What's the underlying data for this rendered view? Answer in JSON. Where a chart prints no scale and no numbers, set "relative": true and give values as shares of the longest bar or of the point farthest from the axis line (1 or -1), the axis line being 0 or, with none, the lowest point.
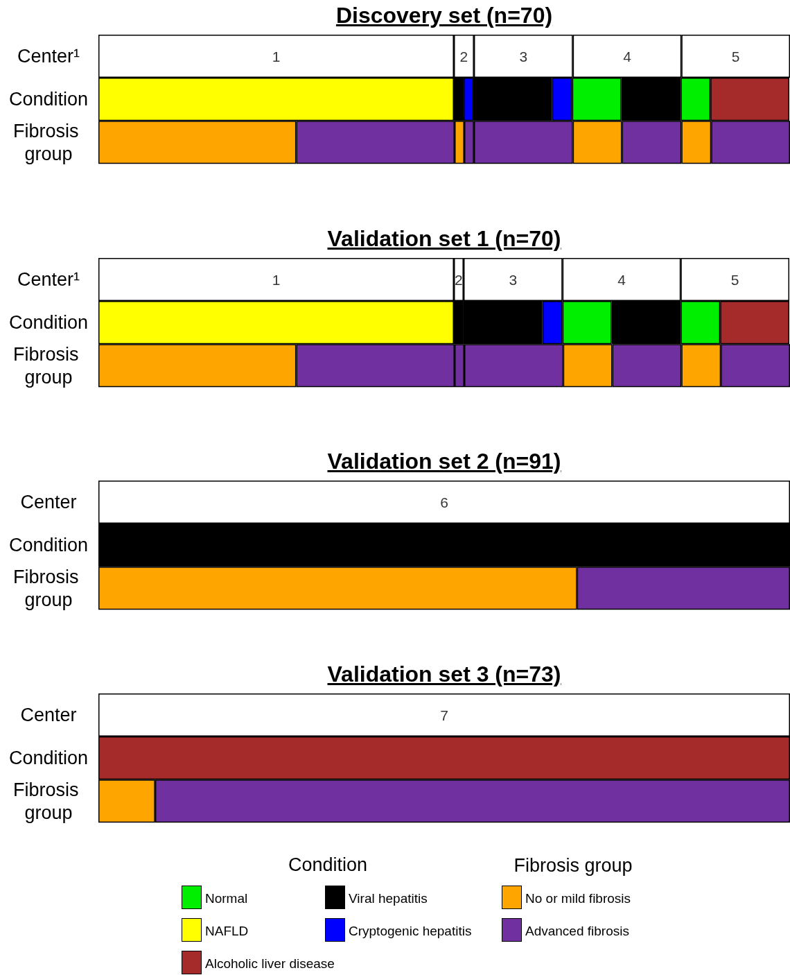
{
  "chart_data": [
    {
      "type": "bar",
      "title": "Discovery set (n=70)",
      "orientation": "horizontal",
      "stacked": true,
      "relative": true,
      "categories": [
        "Center¹",
        "Condition",
        "Fibrosis group"
      ],
      "annotations": [
        "1",
        "2",
        "3",
        "4",
        "5"
      ],
      "series": [
        {
          "values": [
            0.514,
            0.514,
            0.286
          ],
          "colors": [
            "#ffffff",
            "#ffff00",
            "#ffa500"
          ]
        },
        {
          "values": [
            0.029,
            0.014,
            0.229
          ],
          "colors": [
            "#ffffff",
            "#000000",
            "#7030a0"
          ]
        },
        {
          "values": [
            0.143,
            0.014,
            0.014
          ],
          "colors": [
            "#ffffff",
            "#0000ff",
            "#ffa500"
          ]
        },
        {
          "values": [
            0.157,
            0.114,
            0.014
          ],
          "colors": [
            "#ffffff",
            "#000000",
            "#7030a0"
          ]
        },
        {
          "values": [
            0.157,
            0.029,
            0.143
          ],
          "colors": [
            "#ffffff",
            "#0000ff",
            "#7030a0"
          ]
        },
        {
          "values": [
            null,
            0.071,
            0.071
          ],
          "colors": [
            null,
            "#00ee00",
            "#ffa500"
          ]
        },
        {
          "values": [
            null,
            0.086,
            0.086
          ],
          "colors": [
            null,
            "#000000",
            "#7030a0"
          ]
        },
        {
          "values": [
            null,
            0.043,
            0.043
          ],
          "colors": [
            null,
            "#00ee00",
            "#ffa500"
          ]
        },
        {
          "values": [
            null,
            0.114,
            0.114
          ],
          "colors": [
            null,
            "#a52a2a",
            "#7030a0"
          ]
        }
      ]
    },
    {
      "type": "bar",
      "title": "Validation set 1 (n=70)",
      "orientation": "horizontal",
      "stacked": true,
      "relative": true,
      "categories": [
        "Center¹",
        "Condition",
        "Fibrosis group"
      ],
      "annotations": [
        "1",
        "2",
        "3",
        "4",
        "5"
      ],
      "series": [
        {
          "values": [
            0.514,
            0.514,
            0.286
          ],
          "colors": [
            "#ffffff",
            "#ffff00",
            "#ffa500"
          ]
        },
        {
          "values": [
            0.014,
            0.014,
            0.229
          ],
          "colors": [
            "#ffffff",
            "#000000",
            "#7030a0"
          ]
        },
        {
          "values": [
            0.143,
            0.114,
            0.014
          ],
          "colors": [
            "#ffffff",
            "#000000",
            "#7030a0"
          ]
        },
        {
          "values": [
            0.171,
            0.029,
            0.143
          ],
          "colors": [
            "#ffffff",
            "#0000ff",
            "#7030a0"
          ]
        },
        {
          "values": [
            0.157,
            0.071,
            0.071
          ],
          "colors": [
            "#ffffff",
            "#00ee00",
            "#ffa500"
          ]
        },
        {
          "values": [
            null,
            0.1,
            0.1
          ],
          "colors": [
            null,
            "#000000",
            "#7030a0"
          ]
        },
        {
          "values": [
            null,
            0.057,
            0.057
          ],
          "colors": [
            null,
            "#00ee00",
            "#ffa500"
          ]
        },
        {
          "values": [
            null,
            0.1,
            0.1
          ],
          "colors": [
            null,
            "#a52a2a",
            "#7030a0"
          ]
        }
      ]
    },
    {
      "type": "bar",
      "title": "Validation set 2 (n=91)",
      "orientation": "horizontal",
      "stacked": true,
      "relative": true,
      "categories": [
        "Center",
        "Condition",
        "Fibrosis group"
      ],
      "annotations": [
        "6"
      ],
      "series": [
        {
          "values": [
            1,
            1,
            0.692
          ],
          "colors": [
            "#ffffff",
            "#000000",
            "#ffa500"
          ]
        },
        {
          "values": [
            null,
            null,
            0.308
          ],
          "colors": [
            null,
            null,
            "#7030a0"
          ]
        }
      ]
    },
    {
      "type": "bar",
      "title": "Validation set 3 (n=73)",
      "orientation": "horizontal",
      "stacked": true,
      "relative": true,
      "categories": [
        "Center",
        "Condition",
        "Fibrosis group"
      ],
      "annotations": [
        "7"
      ],
      "series": [
        {
          "values": [
            1,
            1,
            0.082
          ],
          "colors": [
            "#ffffff",
            "#a52a2a",
            "#ffa500"
          ]
        },
        {
          "values": [
            null,
            null,
            0.918
          ],
          "colors": [
            null,
            null,
            "#7030a0"
          ]
        }
      ]
    },
    {
      "type": "other",
      "annotations": [
        "Condition",
        "Fibrosis group"
      ],
      "categories": [
        "Normal",
        "NAFLD",
        "Alcoholic liver disease",
        "Viral hepatitis",
        "Cryptogenic hepatitis",
        "No or mild fibrosis",
        "Advanced fibrosis"
      ],
      "colors": [
        "#00ee00",
        "#ffff00",
        "#a52a2a",
        "#000000",
        "#0000ff",
        "#ffa500",
        "#7030a0"
      ]
    }
  ]
}
